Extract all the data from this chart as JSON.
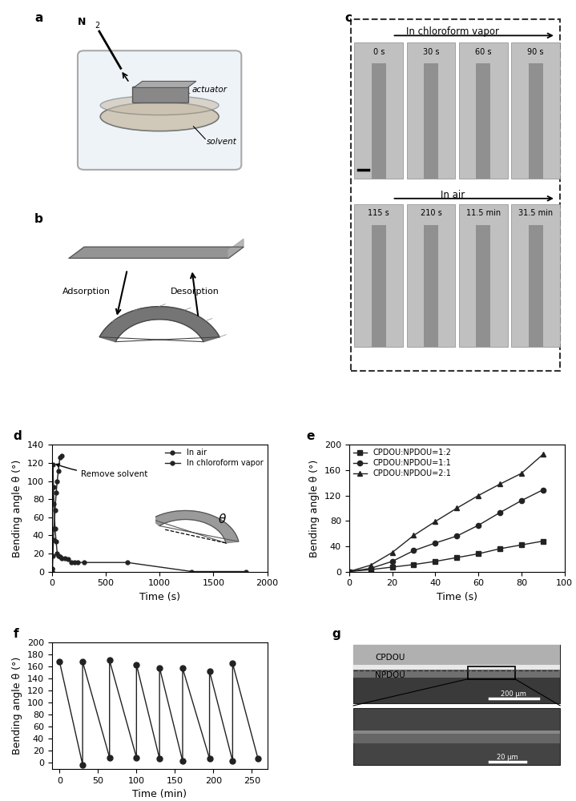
{
  "panel_d": {
    "in_air_time": [
      0,
      5,
      10,
      15,
      20,
      30,
      40,
      50,
      60,
      75,
      90,
      120,
      150,
      180,
      210,
      240,
      300,
      700,
      1300,
      1800
    ],
    "in_air_angle": [
      0,
      3,
      118,
      93,
      75,
      47,
      33,
      20,
      17,
      16,
      15,
      15,
      14,
      10,
      10,
      10,
      10,
      10,
      0,
      0
    ],
    "in_chcl3_time": [
      0,
      5,
      10,
      15,
      20,
      30,
      40,
      50,
      60,
      75,
      90
    ],
    "in_chcl3_angle": [
      0,
      3,
      17,
      35,
      47,
      68,
      87,
      100,
      111,
      126,
      128
    ],
    "xlabel": "Time (s)",
    "ylabel": "Bending angle θ (°)",
    "xlim": [
      0,
      2000
    ],
    "ylim": [
      0,
      140
    ],
    "xticks": [
      0,
      500,
      1000,
      1500,
      2000
    ],
    "yticks": [
      0,
      20,
      40,
      60,
      80,
      100,
      120,
      140
    ],
    "legend_in_air": "In air",
    "legend_in_chcl3": "In chloroform vapor",
    "annotation": "Remove solvent"
  },
  "panel_e": {
    "ratio_1_2_time": [
      0,
      10,
      20,
      30,
      40,
      50,
      60,
      70,
      80,
      90
    ],
    "ratio_1_2_angle": [
      0,
      3,
      7,
      11,
      16,
      22,
      28,
      36,
      42,
      48
    ],
    "ratio_1_1_time": [
      0,
      10,
      20,
      30,
      40,
      50,
      60,
      70,
      80,
      90
    ],
    "ratio_1_1_angle": [
      0,
      5,
      16,
      33,
      45,
      56,
      73,
      93,
      112,
      129
    ],
    "ratio_2_1_time": [
      0,
      10,
      20,
      30,
      40,
      50,
      60,
      70,
      80,
      90
    ],
    "ratio_2_1_angle": [
      0,
      10,
      30,
      57,
      79,
      100,
      120,
      138,
      155,
      185
    ],
    "xlabel": "Time (s)",
    "ylabel": "Bending angle θ (°)",
    "xlim": [
      0,
      100
    ],
    "ylim": [
      0,
      200
    ],
    "xticks": [
      0,
      20,
      40,
      60,
      80,
      100
    ],
    "yticks": [
      0,
      40,
      80,
      120,
      160,
      200
    ],
    "legend_1_2": "CPDOU:NPDOU=1:2",
    "legend_1_1": "CPDOU:NPDOU=1:1",
    "legend_2_1": "CPDOU:NPDOU=2:1"
  },
  "panel_f": {
    "time_high": [
      0,
      30,
      65,
      100,
      130,
      160,
      195,
      225
    ],
    "angle_high": [
      168,
      168,
      170,
      163,
      158,
      157,
      152,
      165
    ],
    "time_low": [
      30,
      65,
      100,
      130,
      160,
      195,
      225,
      258
    ],
    "angle_low": [
      -3,
      9,
      9,
      7,
      3,
      7,
      3,
      7
    ],
    "xlabel": "Time (min)",
    "ylabel": "Bending angle θ (°)",
    "xlim": [
      -10,
      270
    ],
    "ylim": [
      -10,
      200
    ],
    "xticks": [
      0,
      50,
      100,
      150,
      200,
      250
    ],
    "yticks": [
      0,
      20,
      40,
      60,
      80,
      100,
      120,
      140,
      160,
      180,
      200
    ]
  },
  "background_color": "#ffffff",
  "text_color": "#000000",
  "line_color": "#222222",
  "marker_color": "#222222"
}
